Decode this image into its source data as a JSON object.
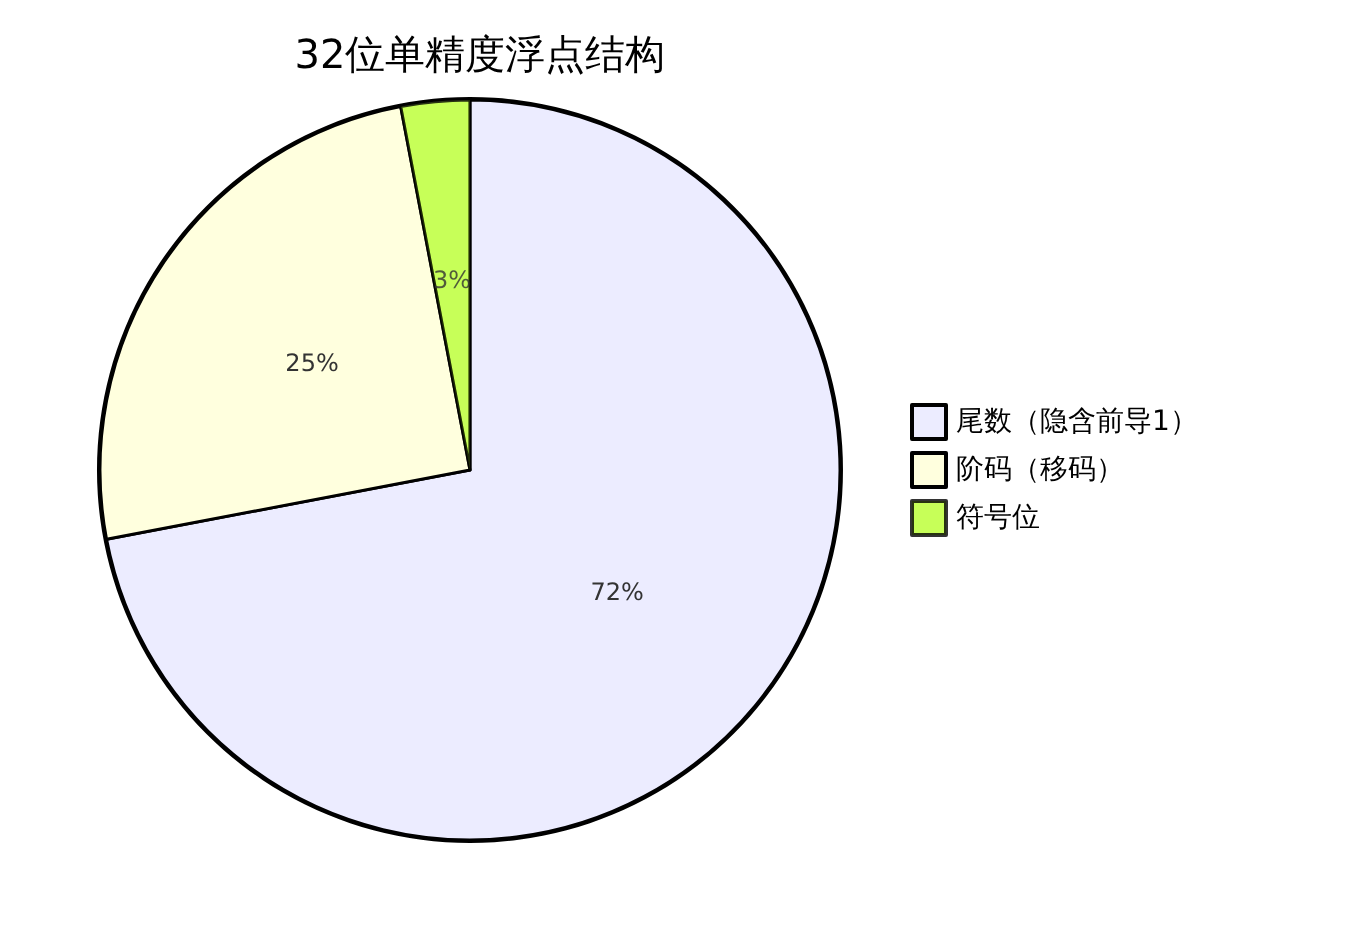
{
  "chart_data": {
    "type": "pie",
    "title": "32位单精度浮点结构",
    "categories": [
      "尾数（隐含前导1）",
      "阶码（移码）",
      "符号位"
    ],
    "values": [
      72,
      25,
      3
    ],
    "colors": [
      "#ececff",
      "#ffffde",
      "#b9ff2e"
    ],
    "value_labels": [
      "72%",
      "25%",
      "3%"
    ],
    "legend": "right"
  }
}
